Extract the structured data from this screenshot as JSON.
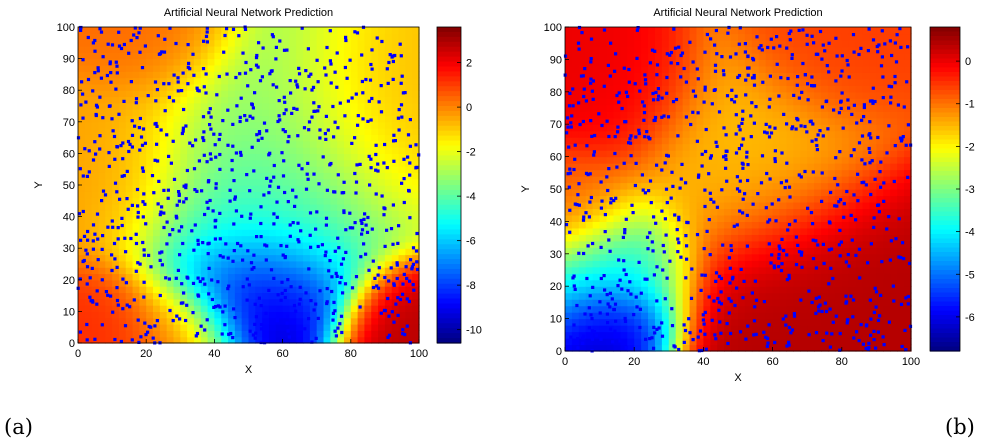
{
  "chart_data": [
    {
      "type": "heatmap",
      "panel_label": "(a)",
      "title": "Artificial Neural Network Prediction",
      "xlabel": "X",
      "ylabel": "Y",
      "xlim": [
        0,
        100
      ],
      "ylim": [
        0,
        100
      ],
      "xticks": [
        0,
        20,
        40,
        60,
        80,
        100
      ],
      "yticks": [
        0,
        10,
        20,
        30,
        40,
        50,
        60,
        70,
        80,
        90,
        100
      ],
      "colormap": "jet",
      "color_range": [
        -10.6,
        3.6
      ],
      "colorbar_ticks": [
        2,
        0,
        -2,
        -4,
        -6,
        -8,
        -10
      ],
      "scatter_color": "#0000ff",
      "surface_features": [
        {
          "x": 52,
          "y": 15,
          "value": -10.4,
          "extent": 13
        },
        {
          "x": 50,
          "y": 38,
          "value": -5.0,
          "extent": 17
        },
        {
          "x": 60,
          "y": 62,
          "value": -3.2,
          "extent": 22
        },
        {
          "x": 20,
          "y": 98,
          "value": 0.4,
          "extent": 13
        },
        {
          "x": 98,
          "y": 2,
          "value": 2.8,
          "extent": 11
        },
        {
          "x": 5,
          "y": 5,
          "value": 1.2,
          "extent": 11
        },
        {
          "x": 30,
          "y": 3,
          "value": 0.6,
          "extent": 10
        },
        {
          "x": 10,
          "y": 55,
          "value": -0.4,
          "extent": 16
        },
        {
          "x": 92,
          "y": 75,
          "value": -0.6,
          "extent": 16
        }
      ]
    },
    {
      "type": "heatmap",
      "panel_label": "(b)",
      "title": "Artificial Neural Network Prediction",
      "xlabel": "X",
      "ylabel": "Y",
      "xlim": [
        0,
        100
      ],
      "ylim": [
        0,
        100
      ],
      "xticks": [
        0,
        20,
        40,
        60,
        80,
        100
      ],
      "yticks": [
        0,
        10,
        20,
        30,
        40,
        50,
        60,
        70,
        80,
        90,
        100
      ],
      "colormap": "jet",
      "color_range": [
        -6.8,
        0.8
      ],
      "colorbar_ticks": [
        0,
        -1,
        -2,
        -3,
        -4,
        -5,
        -6
      ],
      "scatter_color": "#0000ff",
      "surface_features": [
        {
          "x": 15,
          "y": 6,
          "value": -6.6,
          "extent": 9
        },
        {
          "x": 14,
          "y": 25,
          "value": -4.0,
          "extent": 12
        },
        {
          "x": 15,
          "y": 80,
          "value": 0.0,
          "extent": 13
        },
        {
          "x": 70,
          "y": 10,
          "value": 0.4,
          "extent": 22
        },
        {
          "x": 75,
          "y": 95,
          "value": -0.6,
          "extent": 13
        },
        {
          "x": 50,
          "y": 60,
          "value": -1.6,
          "extent": 18
        },
        {
          "x": 3,
          "y": 45,
          "value": -0.8,
          "extent": 10
        }
      ]
    }
  ]
}
